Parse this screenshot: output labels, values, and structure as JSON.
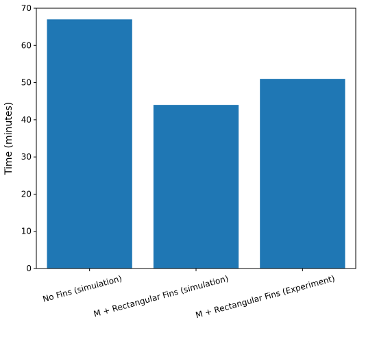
{
  "chart_data": {
    "type": "bar",
    "title": "",
    "xlabel": "",
    "ylabel": "Time (minutes)",
    "categories": [
      "No Fins (simulation)",
      "M + Rectangular Fins (simulation)",
      "M + Rectangular Fins (Experiment)"
    ],
    "values": [
      67,
      44,
      51
    ],
    "ylim": [
      0,
      70
    ],
    "yticks": [
      "0",
      "10",
      "20",
      "30",
      "40",
      "50",
      "60",
      "70"
    ],
    "grid": false,
    "color": "#1f77b4"
  }
}
